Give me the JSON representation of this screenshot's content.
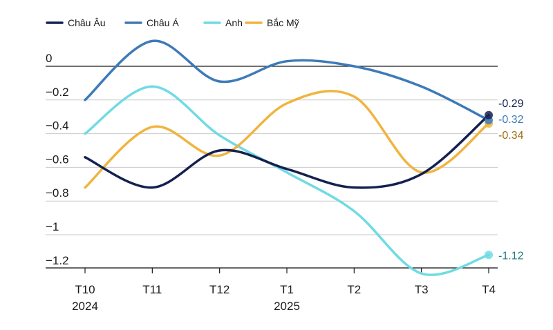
{
  "chart_data": {
    "type": "line",
    "title": "",
    "xlabel": "",
    "ylabel": "",
    "categories": [
      "T10",
      "T11",
      "T12",
      "T1",
      "T2",
      "T3",
      "T4"
    ],
    "category_years": [
      "2024",
      "",
      "",
      "2025",
      "",
      "",
      ""
    ],
    "ylim": [
      -1.25,
      0.05
    ],
    "yticks": [
      0,
      -0.2,
      -0.4,
      -0.6,
      -0.8,
      -1,
      -1.2
    ],
    "ytick_labels": [
      "0",
      "−0.2",
      "−0.4",
      "−0.6",
      "−0.8",
      "−1",
      "−1.2"
    ],
    "grid": true,
    "legend_position": "top-left",
    "series": [
      {
        "name": "Châu Âu",
        "color": "#14204f",
        "values": [
          -0.54,
          -0.72,
          -0.5,
          -0.61,
          -0.72,
          -0.64,
          -0.29
        ],
        "end_label": "-0.29"
      },
      {
        "name": "Châu Á",
        "color": "#3d7ab8",
        "values": [
          -0.2,
          0.15,
          -0.09,
          0.03,
          0.0,
          -0.12,
          -0.32
        ],
        "end_label": "-0.32"
      },
      {
        "name": "Anh",
        "color": "#6fdbe2",
        "values": [
          -0.4,
          -0.12,
          -0.41,
          -0.63,
          -0.86,
          -1.23,
          -1.12
        ],
        "end_label": "-1.12",
        "end_label_color": "#1f7a7c"
      },
      {
        "name": "Bắc Mỹ",
        "color": "#f0b43f",
        "values": [
          -0.72,
          -0.36,
          -0.53,
          -0.22,
          -0.18,
          -0.63,
          -0.34
        ],
        "end_label": "-0.34",
        "end_label_color": "#9c6c10"
      }
    ]
  }
}
